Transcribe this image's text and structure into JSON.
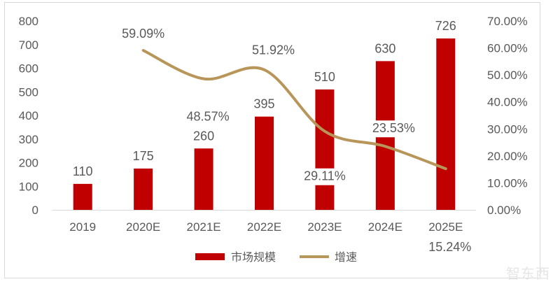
{
  "chart_data": {
    "type": "bar+line",
    "categories": [
      "2019",
      "2020E",
      "2021E",
      "2022E",
      "2023E",
      "2024E",
      "2025E"
    ],
    "series": [
      {
        "name": "市场规模",
        "type": "bar",
        "axis": "left",
        "color": "#c00000",
        "values": [
          110,
          175,
          260,
          395,
          510,
          630,
          726
        ],
        "labels": [
          "110",
          "175",
          "260",
          "395",
          "510",
          "630",
          "726"
        ]
      },
      {
        "name": "增速",
        "type": "line",
        "axis": "right",
        "color": "#b8965a",
        "values": [
          null,
          59.09,
          48.57,
          51.92,
          29.11,
          23.53,
          15.24
        ],
        "labels": [
          "",
          "59.09%",
          "48.57%",
          "51.92%",
          "29.11%",
          "23.53%",
          "15.24%"
        ]
      }
    ],
    "left_axis": {
      "ylim": [
        0,
        800
      ],
      "ticks": [
        "0",
        "100",
        "200",
        "300",
        "400",
        "500",
        "600",
        "700",
        "800"
      ]
    },
    "right_axis": {
      "ylim": [
        0,
        70
      ],
      "ticks": [
        "0.00%",
        "10.00%",
        "20.00%",
        "30.00%",
        "40.00%",
        "50.00%",
        "60.00%",
        "70.00%"
      ]
    },
    "grid": false,
    "legend": {
      "position": "bottom",
      "items": [
        "市场规模",
        "增速"
      ]
    }
  },
  "watermark": "智东西"
}
